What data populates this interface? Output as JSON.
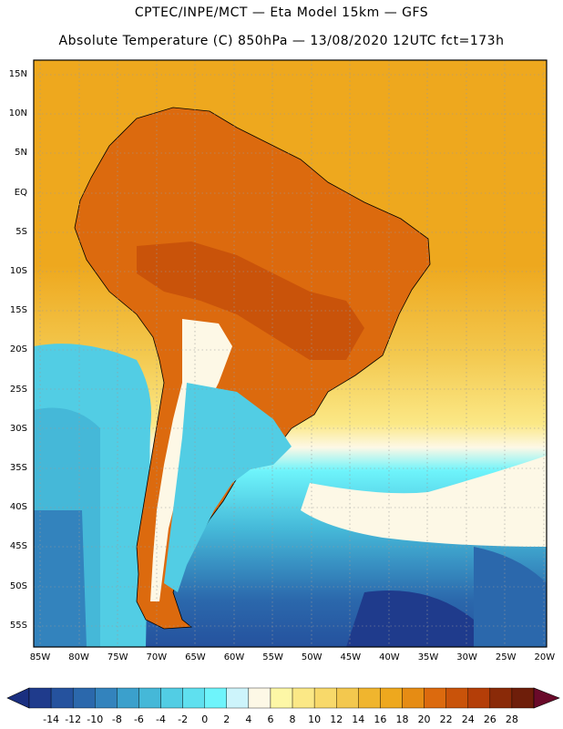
{
  "title_line1": "CPTEC/INPE/MCT —  Eta Model 15km — GFS",
  "title_line2": "Absolute Temperature (C) 850hPa — 13/08/2020 12UTC fct=173h",
  "lat_labels": [
    "15N",
    "10N",
    "5N",
    "EQ",
    "5S",
    "10S",
    "15S",
    "20S",
    "25S",
    "30S",
    "35S",
    "40S",
    "45S",
    "50S",
    "55S"
  ],
  "lon_labels": [
    "85W",
    "80W",
    "75W",
    "70W",
    "65W",
    "60W",
    "55W",
    "50W",
    "45W",
    "40W",
    "35W",
    "30W",
    "25W",
    "20W"
  ],
  "colorbar": {
    "labels": [
      "-14",
      "-12",
      "-10",
      "-8",
      "-6",
      "-4",
      "-2",
      "0",
      "2",
      "4",
      "6",
      "8",
      "10",
      "12",
      "14",
      "16",
      "18",
      "20",
      "22",
      "24",
      "26",
      "28"
    ],
    "colors": [
      "#1f3b8c",
      "#25529e",
      "#2b68ac",
      "#3383bd",
      "#3ba0cc",
      "#45b8d8",
      "#52cde4",
      "#5fe0ef",
      "#6ef4fb",
      "#cdf4fb",
      "#fdf8e6",
      "#fdf7a6",
      "#fbe886",
      "#f8d96a",
      "#f3c84e",
      "#f0b52e",
      "#eea81e",
      "#e68c14",
      "#dc6a0e",
      "#c9530a",
      "#b43e08",
      "#8a2a08",
      "#6e1e0a"
    ],
    "low_arrow": "#1a2f80",
    "high_arrow": "#6a0a2a"
  },
  "colors": {
    "ocean_north": "#eea81e",
    "ocean_south": "#3ba0cc",
    "land_hot": "#dc6a0e",
    "coast_line": "#000000"
  }
}
